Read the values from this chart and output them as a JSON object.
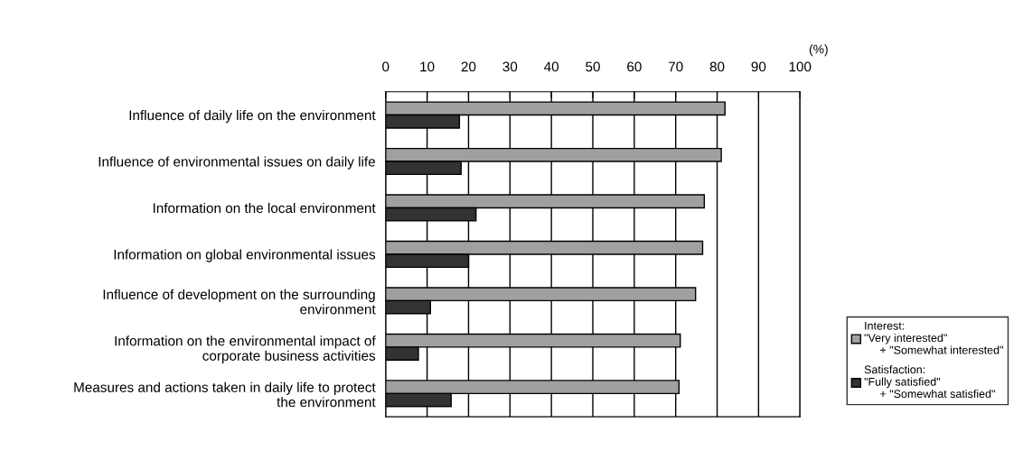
{
  "chart_data": {
    "type": "bar",
    "orientation": "horizontal",
    "xlabel": "(%)",
    "categories": [
      "Influence of daily life on the environment",
      "Influence of environmental issues on daily life",
      "Information on the local environment",
      "Information on global environmental issues",
      "Influence of development on the surrounding\nenvironment",
      "Information on the environmental impact of\ncorporate business activities",
      "Measures and actions taken in daily life to protect\nthe environment"
    ],
    "series": [
      {
        "name": "Interest:\n\"Very interested\"\n     + \"Somewhat interested\"",
        "color": "#a0a0a0",
        "values": [
          81.9,
          81.0,
          76.9,
          76.5,
          74.8,
          71.1,
          70.8
        ]
      },
      {
        "name": "Satisfaction:\n\"Fully satisfied\"\n     + \"Somewhat satisfied\"",
        "color": "#333333",
        "values": [
          17.8,
          18.2,
          21.8,
          20.0,
          10.8,
          7.9,
          15.8
        ]
      }
    ],
    "xlim": [
      0,
      100
    ],
    "xticks": [
      0,
      10,
      20,
      30,
      40,
      50,
      60,
      70,
      80,
      90,
      100
    ],
    "grid": "x",
    "legend": "right"
  }
}
